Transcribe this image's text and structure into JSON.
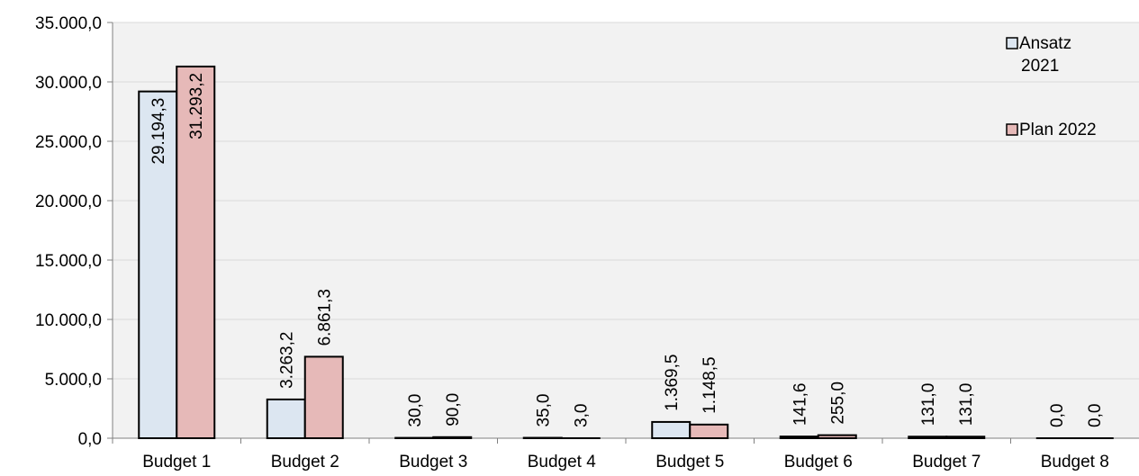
{
  "chart_data": {
    "type": "bar",
    "title": "",
    "xlabel": "",
    "ylabel": "",
    "categories": [
      "Budget 1",
      "Budget 2",
      "Budget 3",
      "Budget 4",
      "Budget 5",
      "Budget 6",
      "Budget 7",
      "Budget 8"
    ],
    "series": [
      {
        "name": "Ansatz 2021",
        "legend_lines": [
          "Ansatz",
          "2021"
        ],
        "color": "#dce6f1",
        "values": [
          29194.3,
          3263.2,
          30.0,
          35.0,
          1369.5,
          141.6,
          131.0,
          0.0
        ],
        "labels": [
          "29.194,3",
          "3.263,2",
          "30,0",
          "35,0",
          "1.369,5",
          "141,6",
          "131,0",
          "0,0"
        ]
      },
      {
        "name": "Plan 2022",
        "legend_lines": [
          "Plan 2022"
        ],
        "color": "#e6b9b8",
        "values": [
          31293.2,
          6861.3,
          90.0,
          3.0,
          1148.5,
          255.0,
          131.0,
          0.0
        ],
        "labels": [
          "31.293,2",
          "6.861,3",
          "90,0",
          "3,0",
          "1.148,5",
          "255,0",
          "131,0",
          "0,0"
        ]
      }
    ],
    "ylim": [
      0,
      35000
    ],
    "yticks": [
      0,
      5000,
      10000,
      15000,
      20000,
      25000,
      30000,
      35000
    ],
    "ytick_labels": [
      "0,0",
      "5.000,0",
      "10.000,0",
      "15.000,0",
      "20.000,0",
      "25.000,0",
      "30.000,0",
      "35.000,0"
    ],
    "grid": true,
    "legend_position": "top-right",
    "plot_background": "#f2f2f2",
    "gridline_color": "#d9d9d9"
  }
}
